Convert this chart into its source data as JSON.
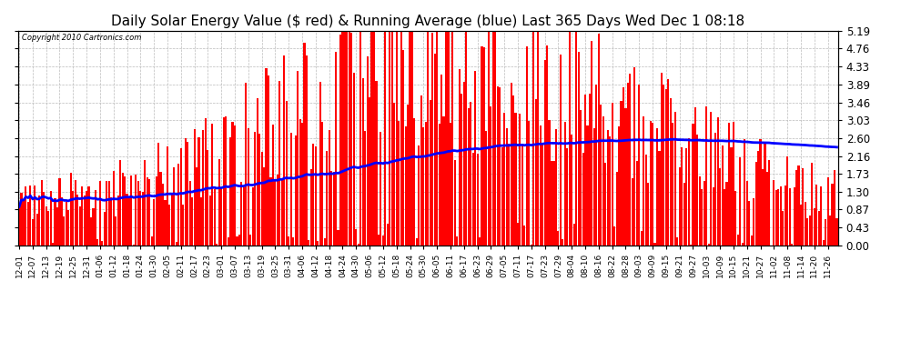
{
  "title": "Daily Solar Energy Value ($ red) & Running Average (blue) Last 365 Days Wed Dec 1 08:18",
  "copyright_text": "Copyright 2010 Cartronics.com",
  "yticks": [
    0.0,
    0.43,
    0.87,
    1.3,
    1.73,
    2.16,
    2.6,
    3.03,
    3.46,
    3.89,
    4.33,
    4.76,
    5.19
  ],
  "ylim": [
    0.0,
    5.19
  ],
  "bar_color": "#ff0000",
  "avg_color": "#0000ff",
  "bg_color": "#ffffff",
  "plot_bg_color": "#ffffff",
  "grid_color": "#bbbbbb",
  "title_fontsize": 11,
  "tick_fontsize": 8.5,
  "avg_linewidth": 2.0,
  "x_label_fontsize": 6.5
}
